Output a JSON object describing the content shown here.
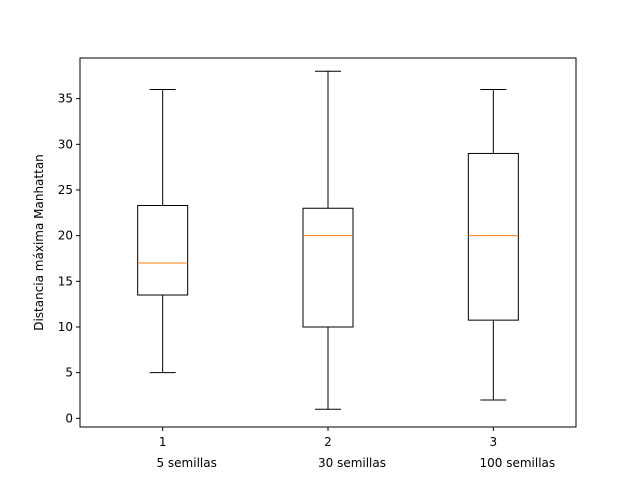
{
  "chart_data": {
    "type": "boxplot",
    "title": "",
    "xlabel": "",
    "ylabel": "Distancia máxima Manhattan",
    "ylim": [
      -0.95,
      39.45
    ],
    "xlim": [
      0.5,
      3.5
    ],
    "yticks": [
      0,
      5,
      10,
      15,
      20,
      25,
      30,
      35
    ],
    "xticks": [
      "1",
      "2",
      "3"
    ],
    "annotations": [
      "5 semillas",
      "30 semillas",
      "100 semillas"
    ],
    "grid": false,
    "boxes": [
      {
        "x": 1,
        "whisker_low": 5,
        "q1": 13.5,
        "median": 17,
        "q3": 23.3,
        "whisker_high": 36
      },
      {
        "x": 2,
        "whisker_low": 1,
        "q1": 10,
        "median": 20,
        "q3": 23,
        "whisker_high": 38
      },
      {
        "x": 3,
        "whisker_low": 2,
        "q1": 10.75,
        "median": 20,
        "q3": 29,
        "whisker_high": 36
      }
    ],
    "colors": {
      "box": "#000000",
      "median": "#ff7f0e",
      "axes": "#000000"
    }
  }
}
